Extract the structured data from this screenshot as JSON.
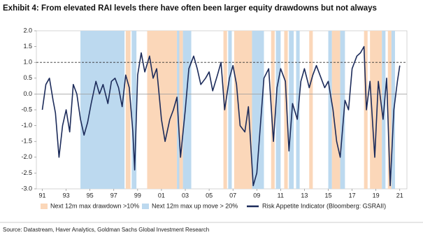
{
  "chart_data": {
    "type": "line",
    "title": "Exhibit 4: From elevated RAI levels there have often been larger equity drawdowns but not always",
    "source": "Source: Datastream, Haver Analytics, Goldman Sachs Global Investment Research",
    "xlim": [
      1990.5,
      2021.6
    ],
    "xticks": [
      {
        "value": 1991,
        "label": "91"
      },
      {
        "value": 1993,
        "label": "93"
      },
      {
        "value": 1995,
        "label": "95"
      },
      {
        "value": 1997,
        "label": "97"
      },
      {
        "value": 1999,
        "label": "99"
      },
      {
        "value": 2001,
        "label": "01"
      },
      {
        "value": 2003,
        "label": "03"
      },
      {
        "value": 2005,
        "label": "05"
      },
      {
        "value": 2007,
        "label": "07"
      },
      {
        "value": 2009,
        "label": "09"
      },
      {
        "value": 2011,
        "label": "11"
      },
      {
        "value": 2013,
        "label": "13"
      },
      {
        "value": 2015,
        "label": "15"
      },
      {
        "value": 2017,
        "label": "17"
      },
      {
        "value": 2019,
        "label": "19"
      },
      {
        "value": 2021,
        "label": "21"
      }
    ],
    "ylim": [
      -3,
      2
    ],
    "yticks": [
      {
        "value": 2,
        "label": "2.0"
      },
      {
        "value": 1.5,
        "label": "1.5"
      },
      {
        "value": 1,
        "label": "1.0"
      },
      {
        "value": 0.5,
        "label": "0.5"
      },
      {
        "value": 0,
        "label": "0.0"
      },
      {
        "value": -0.5,
        "label": "-0.5"
      },
      {
        "value": -1,
        "label": "-1.0"
      },
      {
        "value": -1.5,
        "label": "-1.5"
      },
      {
        "value": -2,
        "label": "-2.0"
      },
      {
        "value": -2.5,
        "label": "-2.5"
      },
      {
        "value": -3,
        "label": "-3.0"
      }
    ],
    "reference_line": 1,
    "shaded": [
      {
        "name": "Next 12m max drawdown >10%",
        "color": "#fbd7b9",
        "spans": [
          [
            1998.0,
            1998.4
          ],
          [
            1999.8,
            2002.3
          ],
          [
            2002.5,
            2002.8
          ],
          [
            2006.2,
            2006.5
          ],
          [
            2007.1,
            2008.6
          ],
          [
            2010.2,
            2010.5
          ],
          [
            2011.3,
            2011.6
          ],
          [
            2013.4,
            2013.7
          ],
          [
            2015.3,
            2016.0
          ],
          [
            2018.0,
            2018.3
          ],
          [
            2018.5,
            2019.5
          ],
          [
            2020.0,
            2020.3
          ]
        ]
      },
      {
        "name": "Next 12m max up move > 20%",
        "color": "#bcd9ef",
        "spans": [
          [
            1994.2,
            1997.9
          ],
          [
            1998.5,
            1998.9
          ],
          [
            2002.3,
            2002.5
          ],
          [
            2002.8,
            2003.5
          ],
          [
            2006.6,
            2006.9
          ],
          [
            2008.6,
            2009.6
          ],
          [
            2010.6,
            2011.0
          ],
          [
            2011.7,
            2012.1
          ],
          [
            2012.3,
            2012.6
          ],
          [
            2015.0,
            2015.3
          ],
          [
            2016.0,
            2016.4
          ],
          [
            2019.5,
            2019.8
          ],
          [
            2020.3,
            2020.6
          ]
        ]
      }
    ],
    "series": [
      {
        "name": "Risk Appetite Indicator (Bloomberg: GSRAII)",
        "color": "#1c2b5a",
        "x": [
          1991.0,
          1991.3,
          1991.6,
          1991.9,
          1992.1,
          1992.4,
          1992.7,
          1993.0,
          1993.3,
          1993.6,
          1993.9,
          1994.2,
          1994.5,
          1994.8,
          1995.1,
          1995.5,
          1995.8,
          1996.1,
          1996.5,
          1996.8,
          1997.1,
          1997.4,
          1997.7,
          1998.0,
          1998.3,
          1998.6,
          1998.75,
          1999.0,
          1999.3,
          1999.6,
          2000.0,
          2000.3,
          2000.6,
          2001.0,
          2001.3,
          2001.7,
          2002.0,
          2002.3,
          2002.6,
          2003.0,
          2003.3,
          2003.7,
          2004.0,
          2004.3,
          2004.7,
          2005.0,
          2005.3,
          2005.7,
          2006.0,
          2006.3,
          2006.7,
          2007.0,
          2007.3,
          2007.6,
          2008.0,
          2008.3,
          2008.7,
          2009.0,
          2009.3,
          2009.6,
          2010.0,
          2010.4,
          2010.7,
          2011.0,
          2011.4,
          2011.7,
          2012.0,
          2012.4,
          2012.7,
          2013.0,
          2013.4,
          2013.7,
          2014.0,
          2014.3,
          2014.7,
          2015.0,
          2015.4,
          2015.7,
          2016.0,
          2016.4,
          2016.7,
          2017.0,
          2017.4,
          2017.7,
          2018.0,
          2018.2,
          2018.5,
          2018.9,
          2019.2,
          2019.6,
          2019.9,
          2020.2,
          2020.5,
          2020.8,
          2021.0
        ],
        "values": [
          -0.5,
          0.3,
          0.5,
          -0.2,
          -0.6,
          -2.0,
          -1.0,
          -0.5,
          -1.2,
          0.3,
          0.0,
          -0.8,
          -1.3,
          -0.9,
          -0.3,
          0.4,
          0.0,
          0.3,
          -0.3,
          0.4,
          0.5,
          0.2,
          -0.4,
          0.6,
          0.2,
          -1.2,
          -2.4,
          0.6,
          1.3,
          0.7,
          1.2,
          0.5,
          0.8,
          -0.8,
          -1.5,
          -0.8,
          -0.5,
          -0.1,
          -2.0,
          -0.5,
          0.8,
          1.2,
          0.8,
          0.3,
          0.5,
          0.7,
          0.1,
          0.6,
          1.0,
          -0.5,
          0.5,
          0.9,
          0.3,
          -1.0,
          -1.2,
          -0.4,
          -2.9,
          -2.5,
          -1.0,
          0.5,
          0.8,
          -1.5,
          0.2,
          0.8,
          0.4,
          -1.8,
          -0.3,
          -0.8,
          0.4,
          0.8,
          0.2,
          0.6,
          0.9,
          0.6,
          0.2,
          0.4,
          -0.5,
          -1.5,
          -2.0,
          -0.2,
          -0.5,
          0.8,
          1.2,
          1.3,
          1.5,
          -0.5,
          0.4,
          -2.0,
          0.4,
          -0.8,
          0.5,
          -2.9,
          -0.5,
          0.4,
          0.9
        ]
      }
    ]
  }
}
